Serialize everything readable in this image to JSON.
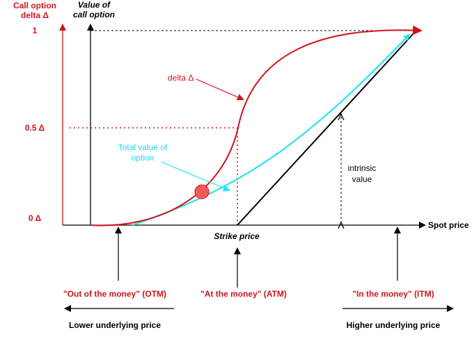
{
  "colors": {
    "delta": "#d0141b",
    "total_value": "#22e5f0",
    "axis": "#000000",
    "marker_fill": "#ef5b5b"
  },
  "left_axis": {
    "title_line1": "Call option",
    "title_line2": "delta Δ",
    "tick_1": "1",
    "tick_half": "0.5 Δ",
    "tick_0": "0 Δ"
  },
  "value_axis": {
    "title_line1": "Value of",
    "title_line2": "call option"
  },
  "x_axis": {
    "label": "Spot price",
    "strike_label": "Strike price"
  },
  "annotations": {
    "delta_label": "delta Δ",
    "total_value_line1": "Total value of",
    "total_value_line2": "option",
    "intrinsic_line1": "intrinsic",
    "intrinsic_line2": "value"
  },
  "regions": {
    "otm": "\"Out of the money\" (OTM)",
    "atm": "\"At the money\" (ATM)",
    "itm": "\"In the money\" (ITM)"
  },
  "direction": {
    "lower": "Lower underlying price",
    "higher": "Higher underlying price"
  }
}
